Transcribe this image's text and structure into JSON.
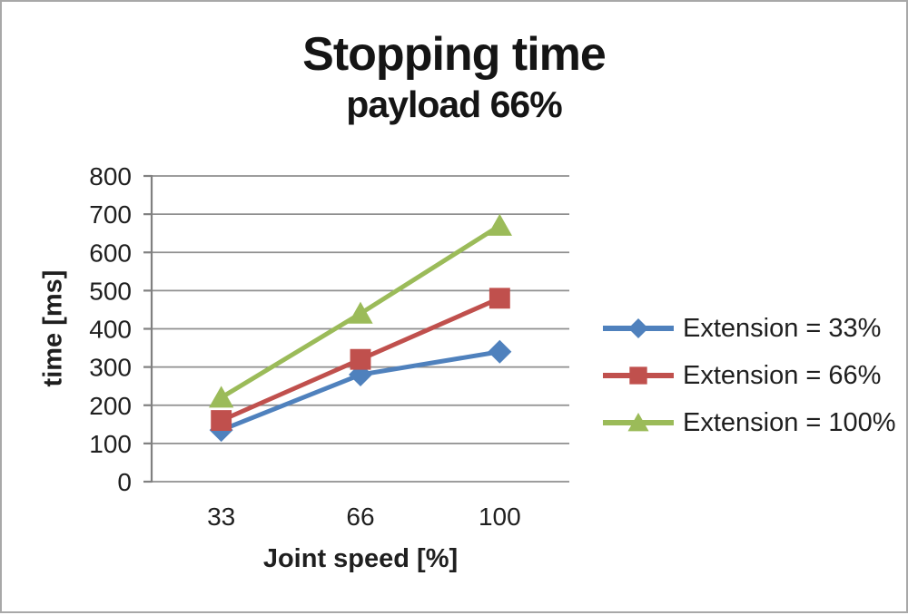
{
  "page": {
    "background": "#ffffff",
    "border_color": "#a8a8a8"
  },
  "chart_data": {
    "type": "line",
    "title": "Stopping time",
    "subtitle": "payload 66%",
    "xlabel": "Joint speed [%]",
    "ylabel": "time [ms]",
    "categories": [
      "33",
      "66",
      "100"
    ],
    "x_values": [
      33,
      66,
      100
    ],
    "ylim": [
      0,
      800
    ],
    "ytick_step": 100,
    "yticks": [
      0,
      100,
      200,
      300,
      400,
      500,
      600,
      700,
      800
    ],
    "grid": true,
    "legend_position": "right",
    "series": [
      {
        "name": "Extension = 33%",
        "marker": "diamond",
        "color": "#4F81BD",
        "values": [
          135,
          280,
          340
        ]
      },
      {
        "name": "Extension = 66%",
        "marker": "square",
        "color": "#C0504D",
        "values": [
          160,
          320,
          480
        ]
      },
      {
        "name": "Extension = 100%",
        "marker": "triangle",
        "color": "#9BBB59",
        "values": [
          220,
          440,
          670
        ]
      }
    ],
    "gridline_color": "#8f8f8f",
    "axis_color": "#808080",
    "text_color": "#1f1f1f"
  }
}
